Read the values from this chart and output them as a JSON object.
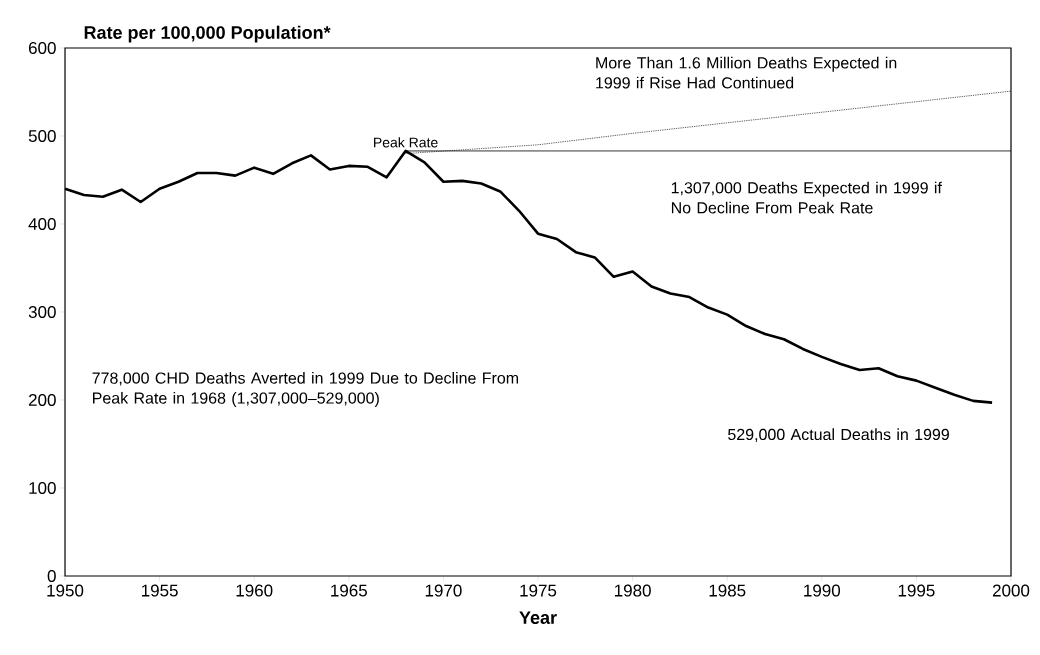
{
  "chart_data": {
    "type": "line",
    "ylabel": "Rate per 100,000 Population*",
    "xlabel": "Year",
    "xlim": [
      1950,
      2000
    ],
    "xticks": [
      1950,
      1955,
      1960,
      1965,
      1970,
      1975,
      1980,
      1985,
      1990,
      1995,
      2000
    ],
    "ylim": [
      0,
      600
    ],
    "yticks": [
      0,
      100,
      200,
      300,
      400,
      500,
      600
    ],
    "grid": false,
    "marker": "none",
    "series": [
      {
        "color": "#000000",
        "line_style": "solid",
        "x": [
          1950,
          1951,
          1952,
          1953,
          1954,
          1955,
          1956,
          1957,
          1958,
          1959,
          1960,
          1961,
          1962,
          1963,
          1964,
          1965,
          1966,
          1967,
          1968,
          1969,
          1970,
          1971,
          1972,
          1973,
          1974,
          1975,
          1976,
          1977,
          1978,
          1979,
          1980,
          1981,
          1982,
          1983,
          1984,
          1985,
          1986,
          1987,
          1988,
          1989,
          1990,
          1991,
          1992,
          1993,
          1994,
          1995,
          1996,
          1997,
          1998,
          1999
        ],
        "values": [
          440,
          433,
          431,
          439,
          425,
          440,
          448,
          458,
          458,
          455,
          464,
          457,
          469,
          478,
          462,
          466,
          465,
          453,
          483,
          470,
          448,
          449,
          446,
          437,
          415,
          389,
          383,
          368,
          362,
          340,
          346,
          329,
          321,
          317,
          305,
          297,
          284,
          275,
          269,
          258,
          249,
          241,
          234,
          236,
          227,
          222,
          214,
          206,
          199,
          197
        ]
      },
      {
        "color": "#000000",
        "line_style": "solid",
        "x": [
          1968,
          2000
        ],
        "values": [
          483,
          483
        ]
      },
      {
        "color": "#000000",
        "line_style": "dotted",
        "x": [
          1968,
          1975,
          1980,
          1985,
          1990,
          1995,
          2000
        ],
        "values": [
          480,
          490,
          503,
          515,
          527,
          539,
          551
        ]
      }
    ],
    "annotations": [
      {
        "text": "Peak Rate",
        "x": 1968,
        "y": 483
      },
      "More Than 1.6 Million Deaths Expected in 1999 if Rise Had Continued",
      "1,307,000 Deaths Expected in 1999 if No Decline From Peak Rate",
      "778,000 CHD Deaths Averted in 1999 Due to Decline From Peak Rate in 1968 (1,307,000–529,000)",
      "529,000 Actual Deaths in 1999"
    ]
  }
}
